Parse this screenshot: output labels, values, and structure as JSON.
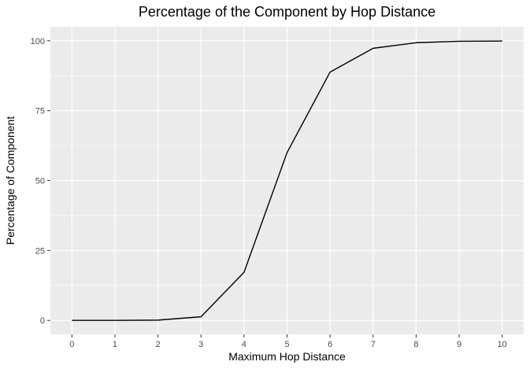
{
  "chart_data": {
    "type": "line",
    "title": "Percentage of the Component by Hop Distance",
    "xlabel": "Maximum Hop Distance",
    "ylabel": "Percentage of Component",
    "x": [
      0,
      1,
      2,
      3,
      4,
      5,
      6,
      7,
      8,
      9,
      10
    ],
    "series": [
      {
        "values": [
          0,
          0,
          0.1,
          1.3,
          17.2,
          60.0,
          88.8,
          97.3,
          99.3,
          99.8,
          99.9
        ]
      }
    ],
    "xlim": [
      -0.5,
      10.5
    ],
    "ylim": [
      -5,
      105
    ],
    "x_ticks": [
      "0",
      "1",
      "2",
      "3",
      "4",
      "5",
      "6",
      "7",
      "8",
      "9",
      "10"
    ],
    "y_ticks": [
      "0",
      "25",
      "50",
      "75",
      "100"
    ],
    "grid": true,
    "legend": "none",
    "colors": {
      "panel_background": "#ebebeb",
      "grid_major": "#ffffff",
      "line": "#000000",
      "tick_text": "#4d4d4d",
      "tick_mark": "#333333"
    }
  }
}
